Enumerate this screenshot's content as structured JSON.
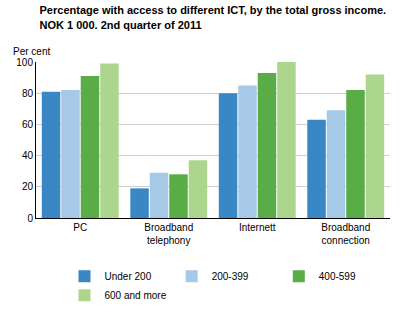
{
  "chart_data": {
    "type": "bar",
    "title": "Percentage with access to different ICT, by the total gross income.\nNOK 1 000. 2nd quarter of 2011",
    "y_label": "Per cent",
    "categories": [
      "PC",
      "Broadband telephony",
      "Internett",
      "Broadband connection"
    ],
    "series": [
      {
        "name": "Under 200",
        "color": "#3a87c6",
        "values": [
          81,
          19,
          80,
          63
        ]
      },
      {
        "name": "200-399",
        "color": "#a7c9e8",
        "values": [
          82,
          29,
          85,
          69
        ]
      },
      {
        "name": "400-599",
        "color": "#5aac47",
        "values": [
          91,
          28,
          93,
          82
        ]
      },
      {
        "name": "600 and more",
        "color": "#acd68d",
        "values": [
          99,
          37,
          100,
          92
        ]
      }
    ],
    "ylim": [
      0,
      100
    ],
    "yticks": [
      0,
      20,
      40,
      60,
      80,
      100
    ],
    "grid": true,
    "legend": "bottom"
  }
}
